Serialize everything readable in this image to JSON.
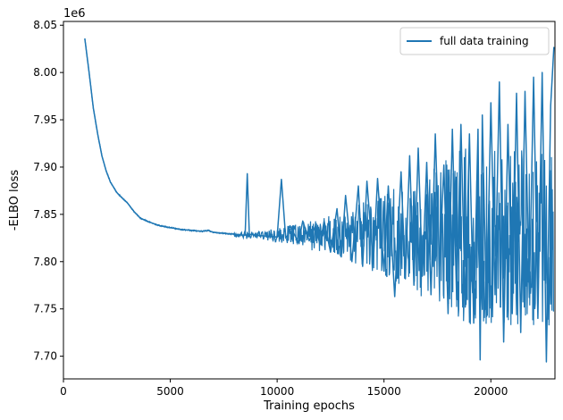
{
  "chart_data": {
    "type": "line",
    "xlabel": "Training epochs",
    "ylabel": "-ELBO loss",
    "y_offset_label": "1e6",
    "y_scale": 1000000,
    "xlim": [
      0,
      23000
    ],
    "ylim": [
      7676000,
      8054000
    ],
    "x_ticks": [
      0,
      5000,
      10000,
      15000,
      20000
    ],
    "x_tick_labels": [
      "0",
      "5000",
      "10000",
      "15000",
      "20000"
    ],
    "y_ticks": [
      7700000,
      7750000,
      7800000,
      7850000,
      7900000,
      7950000,
      8000000,
      8050000
    ],
    "y_tick_labels": [
      "7.70",
      "7.75",
      "7.80",
      "7.85",
      "7.90",
      "7.95",
      "8.00",
      "8.05"
    ],
    "grid": false,
    "legend_position": "top-right",
    "series": [
      {
        "name": "full data training",
        "color": "#1f77b4",
        "x": [
          1000,
          1100,
          1200,
          1400,
          1600,
          1800,
          2000,
          2200,
          2500,
          2800,
          3000,
          3300,
          3600,
          4000,
          4500,
          5000,
          5500,
          6000,
          6500,
          6800,
          7000,
          7500,
          8000,
          8500,
          8600,
          8700,
          9000,
          9500,
          10000,
          10200,
          10400,
          10500,
          10600,
          11000,
          11200,
          11500,
          11800,
          12000,
          12200,
          12500,
          12800,
          13000,
          13200,
          13500,
          13800,
          14000,
          14200,
          14500,
          14700,
          15000,
          15200,
          15500,
          15800,
          16000,
          16200,
          16400,
          16600,
          16800,
          17000,
          17200,
          17400,
          17600,
          17800,
          18000,
          18200,
          18400,
          18600,
          18800,
          19000,
          19200,
          19400,
          19500,
          19600,
          19800,
          20000,
          20200,
          20400,
          20600,
          20800,
          21000,
          21200,
          21400,
          21600,
          21800,
          22000,
          22200,
          22400,
          22600,
          22800,
          22950
        ],
        "y": [
          8036000,
          8018000,
          8000000,
          7962000,
          7935000,
          7912000,
          7896000,
          7884000,
          7873000,
          7866000,
          7862000,
          7853000,
          7846000,
          7842000,
          7838000,
          7836000,
          7834000,
          7833000,
          7832000,
          7833000,
          7831000,
          7830000,
          7829000,
          7828000,
          7893000,
          7829000,
          7828000,
          7827000,
          7826000,
          7887000,
          7825000,
          7828000,
          7838000,
          7820000,
          7843000,
          7822000,
          7838000,
          7818000,
          7843000,
          7810000,
          7856000,
          7805000,
          7870000,
          7800000,
          7880000,
          7795000,
          7885000,
          7798000,
          7888000,
          7790000,
          7880000,
          7763000,
          7895000,
          7782000,
          7912000,
          7775000,
          7920000,
          7785000,
          7905000,
          7765000,
          7935000,
          7795000,
          7902000,
          7745000,
          7940000,
          7760000,
          7945000,
          7752000,
          7935000,
          7735000,
          7940000,
          7696000,
          7955000,
          7742000,
          7968000,
          7765000,
          7990000,
          7715000,
          7945000,
          7745000,
          7978000,
          7725000,
          7980000,
          7762000,
          7995000,
          7740000,
          8000000,
          7694000,
          7965000,
          8027000
        ]
      }
    ]
  }
}
